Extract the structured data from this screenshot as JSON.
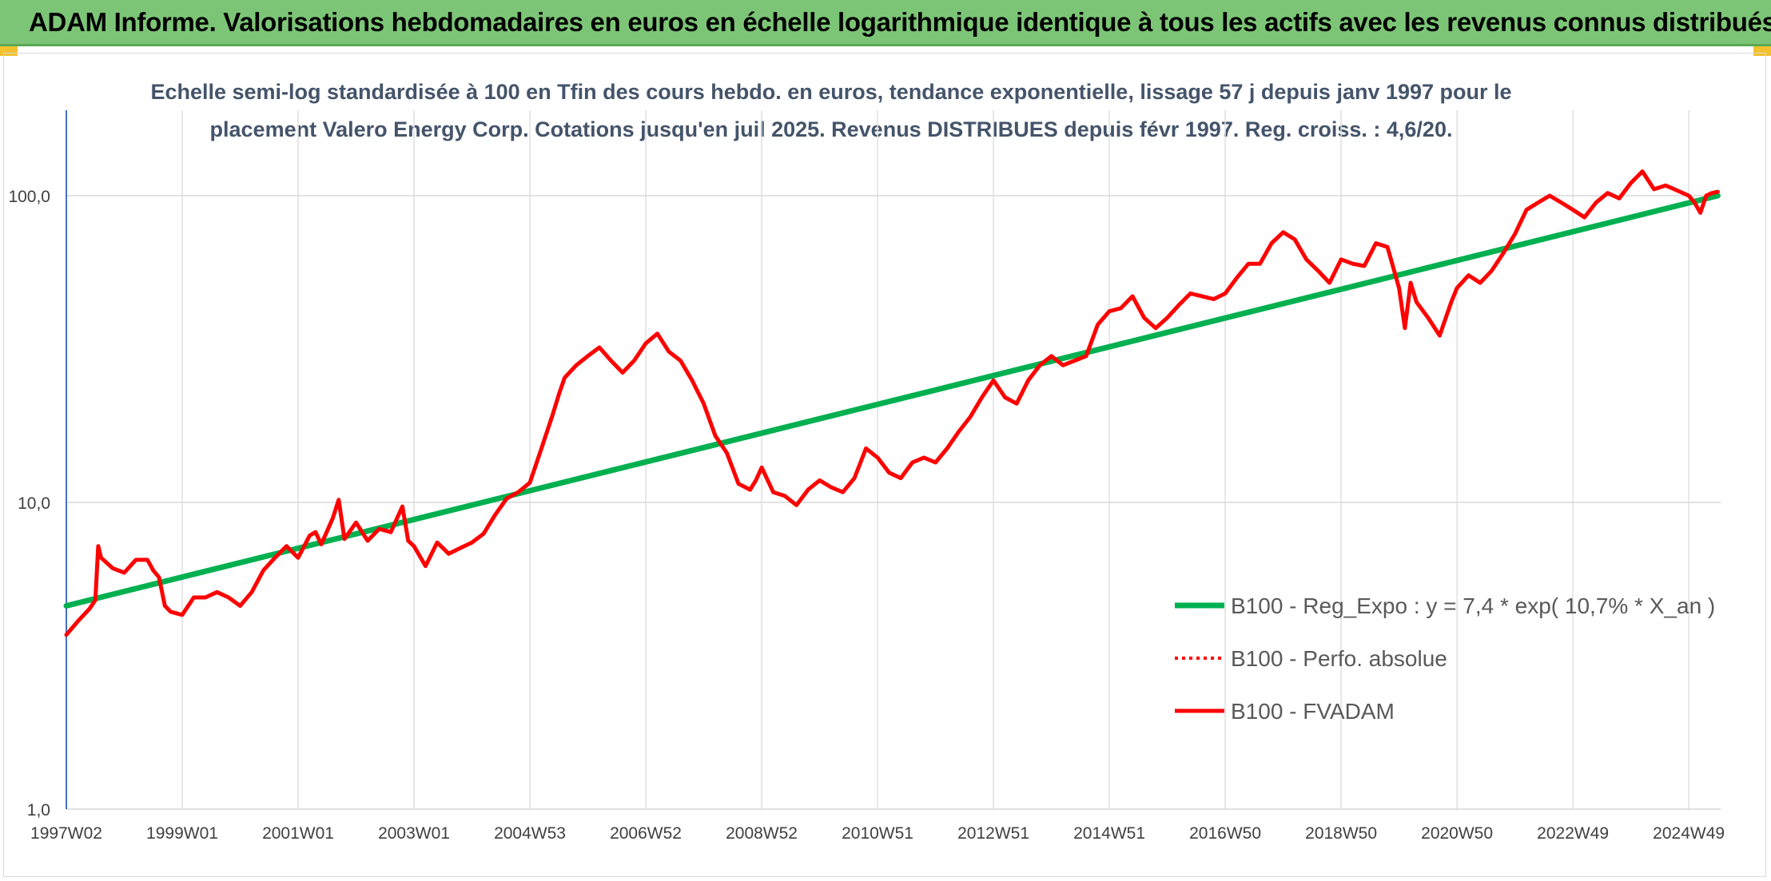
{
  "header": {
    "title": "ADAM Informe. Valorisations hebdomadaires en euros en échelle logarithmique identique à tous les actifs avec les revenus connus distribués"
  },
  "chart_data": {
    "type": "line",
    "title_line1": "Echelle semi-log standardisée à 100 en Tfin des cours hebdo. en euros, tendance exponentielle, lissage 57 j depuis janv 1997 pour le",
    "title_line2": "placement Valero Energy Corp. Cotations jusqu'en juil 2025. Revenus DISTRIBUES depuis févr 1997. Reg. croiss. : 4,6/20.",
    "y_scale": "log",
    "ylim": [
      1,
      190
    ],
    "y_ticks": [
      {
        "value": 1,
        "label": "1,0"
      },
      {
        "value": 10,
        "label": "10,0"
      },
      {
        "value": 100,
        "label": "100,0"
      }
    ],
    "xlim": [
      1997.0,
      2025.55
    ],
    "x_ticks": [
      {
        "value": 1997.0,
        "label": "1997W02"
      },
      {
        "value": 1999.0,
        "label": "1999W01"
      },
      {
        "value": 2001.0,
        "label": "2001W01"
      },
      {
        "value": 2003.0,
        "label": "2003W01"
      },
      {
        "value": 2005.0,
        "label": "2004W53"
      },
      {
        "value": 2007.0,
        "label": "2006W52"
      },
      {
        "value": 2009.0,
        "label": "2008W52"
      },
      {
        "value": 2011.0,
        "label": "2010W51"
      },
      {
        "value": 2013.0,
        "label": "2012W51"
      },
      {
        "value": 2015.0,
        "label": "2014W51"
      },
      {
        "value": 2017.0,
        "label": "2016W50"
      },
      {
        "value": 2019.0,
        "label": "2018W50"
      },
      {
        "value": 2021.0,
        "label": "2020W50"
      },
      {
        "value": 2023.0,
        "label": "2022W49"
      },
      {
        "value": 2025.0,
        "label": "2024W49"
      }
    ],
    "grid": true,
    "legend_position": "bottom-right",
    "series": [
      {
        "name": "B100 - Reg_Expo : y = 7,4 * exp( 10,7% *  X_an )",
        "color": "#00b050",
        "style": "solid",
        "x": [
          1997.0,
          2025.5
        ],
        "y": [
          4.6,
          100
        ]
      },
      {
        "name": "B100 - Perfo. absolue",
        "color": "#ff0000",
        "style": "dotted",
        "x": [],
        "y": []
      },
      {
        "name": "B100 - FVADAM",
        "color": "#ff0000",
        "style": "solid",
        "x": [
          1997.0,
          1997.2,
          1997.4,
          1997.5,
          1997.55,
          1997.6,
          1997.8,
          1998.0,
          1998.2,
          1998.4,
          1998.5,
          1998.6,
          1998.7,
          1998.8,
          1999.0,
          1999.2,
          1999.4,
          1999.6,
          1999.8,
          2000.0,
          2000.2,
          2000.4,
          2000.6,
          2000.8,
          2001.0,
          2001.2,
          2001.3,
          2001.4,
          2001.6,
          2001.7,
          2001.8,
          2002.0,
          2002.2,
          2002.4,
          2002.6,
          2002.8,
          2002.9,
          2003.0,
          2003.2,
          2003.4,
          2003.6,
          2003.8,
          2004.0,
          2004.2,
          2004.4,
          2004.6,
          2004.8,
          2005.0,
          2005.2,
          2005.4,
          2005.5,
          2005.6,
          2005.8,
          2006.0,
          2006.2,
          2006.4,
          2006.6,
          2006.8,
          2007.0,
          2007.2,
          2007.4,
          2007.6,
          2007.8,
          2008.0,
          2008.2,
          2008.4,
          2008.6,
          2008.8,
          2008.9,
          2009.0,
          2009.2,
          2009.4,
          2009.6,
          2009.8,
          2010.0,
          2010.2,
          2010.4,
          2010.6,
          2010.8,
          2011.0,
          2011.2,
          2011.4,
          2011.6,
          2011.8,
          2012.0,
          2012.2,
          2012.4,
          2012.6,
          2012.8,
          2013.0,
          2013.2,
          2013.4,
          2013.6,
          2013.8,
          2014.0,
          2014.2,
          2014.4,
          2014.6,
          2014.8,
          2015.0,
          2015.2,
          2015.4,
          2015.6,
          2015.8,
          2016.0,
          2016.2,
          2016.4,
          2016.6,
          2016.8,
          2017.0,
          2017.2,
          2017.4,
          2017.6,
          2017.8,
          2018.0,
          2018.2,
          2018.4,
          2018.6,
          2018.8,
          2019.0,
          2019.2,
          2019.4,
          2019.6,
          2019.8,
          2020.0,
          2020.1,
          2020.2,
          2020.3,
          2020.5,
          2020.7,
          2020.9,
          2021.0,
          2021.2,
          2021.4,
          2021.6,
          2021.8,
          2022.0,
          2022.2,
          2022.4,
          2022.6,
          2022.8,
          2023.0,
          2023.2,
          2023.4,
          2023.6,
          2023.8,
          2024.0,
          2024.2,
          2024.4,
          2024.6,
          2024.8,
          2025.0,
          2025.1,
          2025.2,
          2025.3,
          2025.4,
          2025.5
        ],
        "y": [
          3.7,
          4.1,
          4.5,
          4.8,
          7.2,
          6.6,
          6.1,
          5.9,
          6.5,
          6.5,
          6.0,
          5.7,
          4.6,
          4.4,
          4.3,
          4.9,
          4.9,
          5.1,
          4.9,
          4.6,
          5.1,
          6.0,
          6.6,
          7.2,
          6.6,
          7.8,
          8.0,
          7.3,
          8.9,
          10.2,
          7.6,
          8.6,
          7.5,
          8.2,
          8.0,
          9.7,
          7.5,
          7.2,
          6.2,
          7.4,
          6.8,
          7.1,
          7.4,
          7.9,
          9.1,
          10.3,
          10.8,
          11.6,
          15.0,
          19.5,
          22.5,
          25.5,
          28.0,
          30.0,
          32.0,
          29.0,
          26.5,
          29.0,
          33.0,
          35.5,
          31.0,
          29.0,
          25.0,
          21.0,
          16.5,
          14.5,
          11.5,
          11.0,
          11.8,
          13.0,
          10.8,
          10.5,
          9.8,
          11.0,
          11.8,
          11.2,
          10.8,
          12.0,
          15.0,
          14.0,
          12.5,
          12.0,
          13.5,
          14.0,
          13.5,
          15.0,
          17.0,
          19.0,
          22.0,
          25.0,
          22.0,
          21.0,
          25.0,
          28.0,
          30.0,
          28.0,
          29.0,
          30.0,
          38.0,
          42.0,
          43.0,
          47.0,
          40.0,
          37.0,
          40.0,
          44.0,
          48.0,
          47.0,
          46.0,
          48.0,
          54.0,
          60.0,
          60.0,
          70.0,
          76.0,
          72.0,
          62.0,
          57.0,
          52.0,
          62.0,
          60.0,
          59.0,
          70.0,
          68.0,
          50.0,
          37.0,
          52.0,
          45.0,
          40.0,
          35.0,
          45.0,
          50.0,
          55.0,
          52.0,
          57.0,
          65.0,
          75.0,
          90.0,
          95.0,
          100.0,
          95.0,
          90.0,
          85.0,
          95.0,
          102.0,
          98.0,
          110.0,
          120.0,
          105.0,
          108.0,
          104.0,
          100.0,
          95.0,
          88.0,
          100.0,
          102.0,
          103.0
        ]
      }
    ]
  }
}
